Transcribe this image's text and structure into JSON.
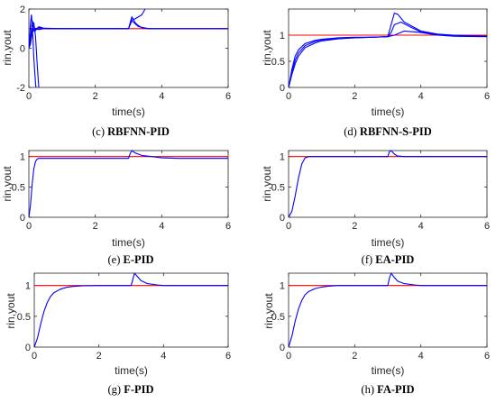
{
  "chart_data": [
    {
      "id": "c",
      "type": "line",
      "caption_label": "(c)",
      "caption": "RBFNN-PID",
      "xlabel": "time(s)",
      "ylabel": "rin,yout",
      "xlim": [
        0,
        6
      ],
      "ylim": [
        -2,
        2
      ],
      "xticks": [
        "0",
        "2",
        "4",
        "6"
      ],
      "yticks": [
        "-2",
        "0",
        "2"
      ],
      "grid": false,
      "series": [
        {
          "color": "#ff0000",
          "x": [
            0,
            6
          ],
          "y": [
            1,
            1
          ]
        },
        {
          "color": "#0000ff",
          "x": [
            0,
            0.02,
            0.05,
            0.08,
            0.1,
            0.15,
            0.2,
            0.3,
            0.5,
            1,
            2,
            3,
            3.1,
            3.2,
            3.3,
            3.4,
            3.6,
            4,
            6
          ],
          "y": [
            0,
            0.4,
            1.3,
            1.7,
            1.2,
            0.9,
            1.0,
            1.05,
            1.0,
            1.0,
            1.0,
            1.0,
            1.6,
            1.3,
            1.15,
            1.05,
            1.0,
            1.0,
            1.0
          ]
        },
        {
          "color": "#0000ff",
          "x": [
            0,
            0.05,
            0.1,
            0.12,
            0.15,
            0.2,
            0.25,
            0.3
          ],
          "y": [
            0,
            0.3,
            1.0,
            0.6,
            -0.5,
            -1.8,
            -2.5,
            -2.8
          ]
        },
        {
          "color": "#0000ff",
          "x": [
            0,
            0.05,
            0.1,
            0.15,
            0.2,
            0.25,
            0.3,
            0.4
          ],
          "y": [
            0,
            0.3,
            0.8,
            1.3,
            0.6,
            -0.8,
            -2.0,
            -2.8
          ]
        },
        {
          "color": "#0000ff",
          "x": [
            0,
            0.05,
            0.1,
            0.2,
            0.3,
            0.5,
            0.8,
            1.5,
            3,
            3.1,
            3.2,
            3.4,
            3.5
          ],
          "y": [
            0,
            0.5,
            1.4,
            0.9,
            1.1,
            1.0,
            1.0,
            1.0,
            1.0,
            1.45,
            1.5,
            1.7,
            2.0
          ]
        },
        {
          "color": "#0000ff",
          "x": [
            0,
            0.05,
            0.1,
            0.2,
            0.3,
            0.5,
            1,
            3,
            3.1,
            3.3,
            3.6,
            4,
            6
          ],
          "y": [
            0,
            0.2,
            0.8,
            1.0,
            0.95,
            1.02,
            1.0,
            1.0,
            1.4,
            1.1,
            1.0,
            1.0,
            1.0
          ]
        }
      ]
    },
    {
      "id": "d",
      "type": "line",
      "caption_label": "(d)",
      "caption": "RBFNN-S-PID",
      "xlabel": "time(s)",
      "ylabel": "rin,yout",
      "xlim": [
        0,
        6
      ],
      "ylim": [
        0,
        1.5
      ],
      "xticks": [
        "0",
        "2",
        "4",
        "6"
      ],
      "yticks": [
        "0",
        "0.5",
        "1"
      ],
      "grid": false,
      "series": [
        {
          "color": "#ff0000",
          "x": [
            0,
            6
          ],
          "y": [
            1,
            1
          ]
        },
        {
          "color": "#0000ff",
          "x": [
            0,
            0.1,
            0.2,
            0.3,
            0.5,
            0.8,
            1,
            1.5,
            2,
            2.5,
            3,
            3.1,
            3.2,
            3.3,
            3.5,
            4,
            4.5,
            5,
            6
          ],
          "y": [
            0,
            0.35,
            0.6,
            0.72,
            0.84,
            0.9,
            0.92,
            0.95,
            0.96,
            0.96,
            0.97,
            1.2,
            1.42,
            1.4,
            1.25,
            1.08,
            1.02,
            1.0,
            0.98
          ]
        },
        {
          "color": "#0000ff",
          "x": [
            0,
            0.1,
            0.2,
            0.3,
            0.5,
            0.8,
            1,
            1.5,
            2,
            2.5,
            3,
            3.1,
            3.2,
            3.4,
            3.7,
            4,
            4.5,
            5,
            6
          ],
          "y": [
            0,
            0.3,
            0.52,
            0.66,
            0.8,
            0.88,
            0.91,
            0.94,
            0.95,
            0.96,
            0.97,
            1.05,
            1.2,
            1.25,
            1.15,
            1.06,
            1.01,
            0.99,
            0.98
          ]
        },
        {
          "color": "#0000ff",
          "x": [
            0,
            0.1,
            0.2,
            0.3,
            0.5,
            0.8,
            1,
            1.5,
            2,
            2.5,
            3,
            3.2,
            3.5,
            4,
            4.5,
            5,
            6
          ],
          "y": [
            0,
            0.25,
            0.45,
            0.6,
            0.76,
            0.85,
            0.89,
            0.93,
            0.95,
            0.96,
            0.97,
            1.0,
            1.08,
            1.05,
            1.0,
            0.98,
            0.97
          ]
        }
      ]
    },
    {
      "id": "e",
      "type": "line",
      "caption_label": "(e)",
      "caption": "E-PID",
      "xlabel": "time(s)",
      "ylabel": "rin,yout",
      "xlim": [
        0,
        6
      ],
      "ylim": [
        0,
        1.1
      ],
      "xticks": [
        "0",
        "2",
        "4",
        "6"
      ],
      "yticks": [
        "0",
        "0.5",
        "1"
      ],
      "grid": false,
      "series": [
        {
          "color": "#ff0000",
          "x": [
            0,
            6
          ],
          "y": [
            1,
            1
          ]
        },
        {
          "color": "#0000ff",
          "x": [
            0,
            0.05,
            0.1,
            0.15,
            0.2,
            0.25,
            0.3,
            0.4,
            0.6,
            1,
            2,
            3,
            3.05,
            3.1,
            3.2,
            3.4,
            3.7,
            4,
            4.5,
            6
          ],
          "y": [
            0,
            0.2,
            0.55,
            0.8,
            0.92,
            0.96,
            0.97,
            0.97,
            0.97,
            0.97,
            0.97,
            0.97,
            1.05,
            1.1,
            1.06,
            1.02,
            1.0,
            0.98,
            0.97,
            0.97
          ]
        }
      ]
    },
    {
      "id": "f",
      "type": "line",
      "caption_label": "(f)",
      "caption": "EA-PID",
      "xlabel": "time(s)",
      "ylabel": "rin,yout",
      "xlim": [
        0,
        6
      ],
      "ylim": [
        0,
        1.1
      ],
      "xticks": [
        "0",
        "2",
        "4",
        "6"
      ],
      "yticks": [
        "0",
        "0.5",
        "1"
      ],
      "grid": false,
      "series": [
        {
          "color": "#ff0000",
          "x": [
            0,
            6
          ],
          "y": [
            1,
            1
          ]
        },
        {
          "color": "#0000ff",
          "x": [
            0,
            0.1,
            0.2,
            0.3,
            0.4,
            0.5,
            0.6,
            0.8,
            1,
            2,
            3,
            3.05,
            3.1,
            3.2,
            3.3,
            3.5,
            4,
            6
          ],
          "y": [
            0,
            0.1,
            0.35,
            0.65,
            0.88,
            0.98,
            1.0,
            1.0,
            1.0,
            1.0,
            1.0,
            1.08,
            1.1,
            1.04,
            1.01,
            1.0,
            1.0,
            1.0
          ]
        }
      ]
    },
    {
      "id": "g",
      "type": "line",
      "caption_label": "(g)",
      "caption": "F-PID",
      "xlabel": "time(s)",
      "ylabel": "rin,yout",
      "xlim": [
        0,
        6
      ],
      "ylim": [
        0,
        1.2
      ],
      "xticks": [
        "0",
        "2",
        "4",
        "6"
      ],
      "yticks": [
        "0",
        "0.5",
        "1"
      ],
      "grid": false,
      "series": [
        {
          "color": "#ff0000",
          "x": [
            0,
            6
          ],
          "y": [
            1,
            1
          ]
        },
        {
          "color": "#0000ff",
          "x": [
            0,
            0.1,
            0.2,
            0.3,
            0.4,
            0.5,
            0.6,
            0.8,
            1,
            1.2,
            1.5,
            2,
            3,
            3.05,
            3.1,
            3.2,
            3.3,
            3.5,
            3.8,
            4,
            6
          ],
          "y": [
            0,
            0.15,
            0.38,
            0.58,
            0.72,
            0.82,
            0.88,
            0.94,
            0.97,
            0.985,
            0.995,
            1.0,
            1.0,
            1.1,
            1.2,
            1.14,
            1.08,
            1.03,
            1.01,
            1.0,
            1.0
          ]
        }
      ]
    },
    {
      "id": "h",
      "type": "line",
      "caption_label": "(h)",
      "caption": "FA-PID",
      "xlabel": "time(s)",
      "ylabel": "rin,yout",
      "xlim": [
        0,
        6
      ],
      "ylim": [
        0,
        1.2
      ],
      "xticks": [
        "0",
        "2",
        "4",
        "6"
      ],
      "yticks": [
        "0",
        "0.5",
        "1"
      ],
      "grid": false,
      "series": [
        {
          "color": "#ff0000",
          "x": [
            0,
            6
          ],
          "y": [
            1,
            1
          ]
        },
        {
          "color": "#0000ff",
          "x": [
            0,
            0.1,
            0.2,
            0.3,
            0.4,
            0.5,
            0.6,
            0.8,
            1,
            1.2,
            1.5,
            2,
            3,
            3.05,
            3.1,
            3.2,
            3.3,
            3.5,
            3.8,
            4,
            6
          ],
          "y": [
            0,
            0.18,
            0.42,
            0.62,
            0.76,
            0.85,
            0.9,
            0.95,
            0.975,
            0.99,
            1.0,
            1.0,
            1.0,
            1.12,
            1.2,
            1.13,
            1.07,
            1.03,
            1.01,
            1.0,
            1.0
          ]
        }
      ]
    }
  ]
}
